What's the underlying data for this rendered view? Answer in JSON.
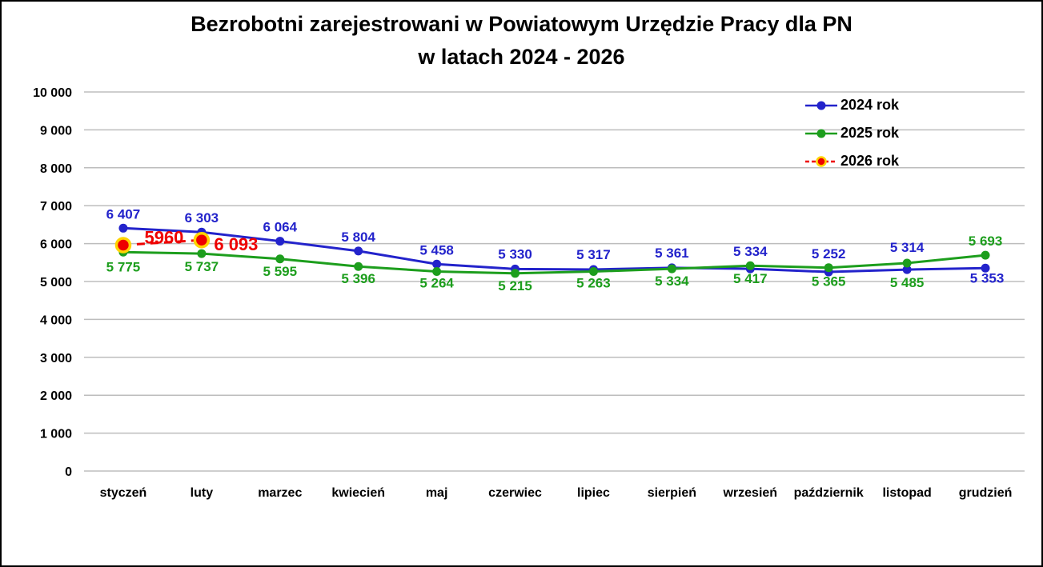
{
  "title": {
    "line1": "Bezrobotni zarejestrowani w Powiatowym Urzędzie Pracy dla PN",
    "line2": "w latach 2024 - 2026"
  },
  "colors": {
    "grid": "#BDBDBD",
    "axis_text": "#000000",
    "background": "#FFFFFF",
    "border": "#000000"
  },
  "chart_data": {
    "type": "line",
    "title": "Bezrobotni zarejestrowani w Powiatowym Urzędzie Pracy dla PN w latach 2024 - 2026",
    "categories": [
      "styczeń",
      "luty",
      "marzec",
      "kwiecień",
      "maj",
      "czerwiec",
      "lipiec",
      "sierpień",
      "wrzesień",
      "październik",
      "listopad",
      "grudzień"
    ],
    "xlabel": "",
    "ylabel": "",
    "grid": true,
    "legend_position": "top-right",
    "y_axis": {
      "min": 0,
      "max": 10000,
      "step": 1000,
      "tick_labels": [
        "0",
        "1 000",
        "2 000",
        "3 000",
        "4 000",
        "5 000",
        "6 000",
        "7 000",
        "8 000",
        "9 000",
        "10 000"
      ]
    },
    "series": [
      {
        "name": "2024 rok",
        "color": "#2323CB",
        "dashed": false,
        "dash": "",
        "line_width": 3,
        "marker_radius": 5.5,
        "marker_stroke": "",
        "marker_stroke_width": 0,
        "label_size": 17,
        "values": [
          6407,
          6303,
          6064,
          5804,
          5458,
          5330,
          5317,
          5361,
          5334,
          5252,
          5314,
          5353
        ],
        "data_labels": [
          "6 407",
          "6 303",
          "6 064",
          "5 804",
          "5 458",
          "5 330",
          "5 317",
          "5 361",
          "5 334",
          "5 252",
          "5 314",
          "5 353"
        ],
        "label_offsets": [
          [
            0,
            -12
          ],
          [
            0,
            -12
          ],
          [
            0,
            -12
          ],
          [
            0,
            -12
          ],
          [
            0,
            -12
          ],
          [
            0,
            -13
          ],
          [
            0,
            -13
          ],
          [
            0,
            -13
          ],
          [
            0,
            -16
          ],
          [
            0,
            -17
          ],
          [
            0,
            -22
          ],
          [
            2,
            18
          ]
        ]
      },
      {
        "name": "2025 rok",
        "color": "#1D9E1D",
        "dashed": false,
        "dash": "",
        "line_width": 3,
        "marker_radius": 5.5,
        "marker_stroke": "",
        "marker_stroke_width": 0,
        "label_size": 17,
        "values": [
          5775,
          5737,
          5595,
          5396,
          5264,
          5215,
          5263,
          5334,
          5417,
          5365,
          5485,
          5693
        ],
        "data_labels": [
          "5 775",
          "5 737",
          "5 595",
          "5 396",
          "5 264",
          "5 215",
          "5 263",
          "5 334",
          "5 417",
          "5 365",
          "5 485",
          "5 693"
        ],
        "label_offsets": [
          [
            0,
            24
          ],
          [
            0,
            22
          ],
          [
            0,
            21
          ],
          [
            0,
            21
          ],
          [
            0,
            20
          ],
          [
            0,
            21
          ],
          [
            0,
            20
          ],
          [
            0,
            21
          ],
          [
            0,
            22
          ],
          [
            0,
            23
          ],
          [
            0,
            30
          ],
          [
            0,
            -12
          ]
        ]
      },
      {
        "name": "2026 rok",
        "color": "#EE0000",
        "dashed": true,
        "dash": "10 7",
        "line_width": 3,
        "marker_radius": 8.5,
        "marker_stroke": "#FFD400",
        "marker_stroke_width": 3.5,
        "label_size": 22,
        "values": [
          5960,
          6093,
          null,
          null,
          null,
          null,
          null,
          null,
          null,
          null,
          null,
          null
        ],
        "data_labels": [
          "5960",
          "6 093",
          null,
          null,
          null,
          null,
          null,
          null,
          null,
          null,
          null,
          null
        ],
        "label_offsets": [
          [
            51,
            -2
          ],
          [
            43,
            13
          ],
          null,
          null,
          null,
          null,
          null,
          null,
          null,
          null,
          null,
          null
        ]
      }
    ]
  }
}
